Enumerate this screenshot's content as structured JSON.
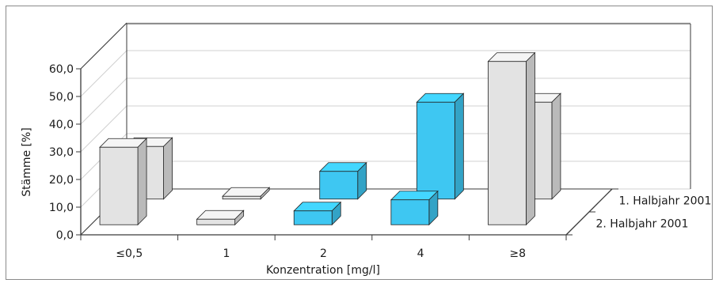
{
  "chart_data": {
    "type": "bar",
    "title": "",
    "xlabel": "Konzentration [mg/l]",
    "ylabel": "Stämme [%]",
    "ylim": [
      0,
      60
    ],
    "ytick_labels": [
      "0,0",
      "10,0",
      "20,0",
      "30,0",
      "40,0",
      "50,0",
      "60,0"
    ],
    "categories": [
      "≤0,5",
      "1",
      "2",
      "4",
      "≥8"
    ],
    "series": [
      {
        "name": "2. Halbjahr 2001",
        "values": [
          28,
          2,
          5,
          9,
          59
        ]
      },
      {
        "name": "1. Halbjahr 2001",
        "values": [
          19,
          1,
          10,
          35,
          35
        ]
      }
    ],
    "bar_colors": [
      [
        "#e3e3e3",
        "#e3e3e3",
        "#3ec7f2",
        "#3ec7f2",
        "#e3e3e3"
      ],
      [
        "#e3e3e3",
        "#e3e3e3",
        "#3ec7f2",
        "#3ec7f2",
        "#e3e3e3"
      ]
    ],
    "grid": true,
    "legend": "right"
  }
}
